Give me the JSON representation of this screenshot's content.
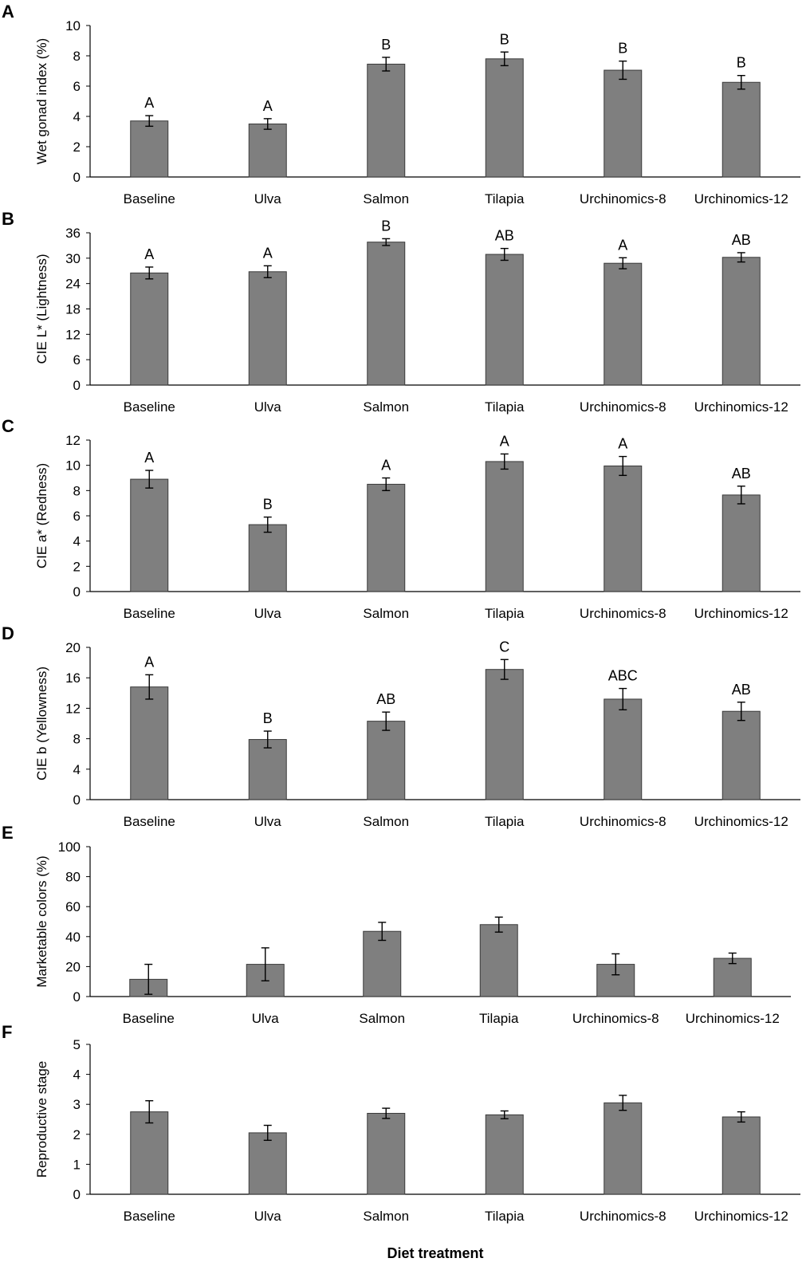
{
  "figure": {
    "x_title": "Diet treatment",
    "bar_color": "#7f7f7f",
    "axis_color": "#000000"
  },
  "chart_data": [
    {
      "panel": "A",
      "type": "bar",
      "ylabel": "Wet gonad index (%)",
      "ylim": [
        0,
        10
      ],
      "yticks": [
        "0",
        "2",
        "4",
        "6",
        "8",
        "10"
      ],
      "categories": [
        "Baseline",
        "Ulva",
        "Salmon",
        "Tilapia",
        "Urchinomics-8",
        "Urchinomics-12"
      ],
      "values": [
        3.7,
        3.5,
        7.45,
        7.8,
        7.05,
        6.25
      ],
      "errors": [
        0.35,
        0.35,
        0.45,
        0.45,
        0.6,
        0.45
      ],
      "letters": [
        "A",
        "A",
        "B",
        "B",
        "B",
        "B"
      ]
    },
    {
      "panel": "B",
      "type": "bar",
      "ylabel": "CIE L* (Lightness)",
      "ylim": [
        0,
        36
      ],
      "yticks": [
        "0",
        "6",
        "12",
        "18",
        "24",
        "30",
        "36"
      ],
      "categories": [
        "Baseline",
        "Ulva",
        "Salmon",
        "Tilapia",
        "Urchinomics-8",
        "Urchinomics-12"
      ],
      "values": [
        26.5,
        26.8,
        33.8,
        30.9,
        28.8,
        30.2
      ],
      "errors": [
        1.4,
        1.4,
        0.8,
        1.4,
        1.3,
        1.1
      ],
      "letters": [
        "A",
        "A",
        "B",
        "AB",
        "A",
        "AB"
      ]
    },
    {
      "panel": "C",
      "type": "bar",
      "ylabel": "CIE a* (Redness)",
      "ylim": [
        0,
        12
      ],
      "yticks": [
        "0",
        "2",
        "4",
        "6",
        "8",
        "10",
        "12"
      ],
      "categories": [
        "Baseline",
        "Ulva",
        "Salmon",
        "Tilapia",
        "Urchinomics-8",
        "Urchinomics-12"
      ],
      "values": [
        8.9,
        5.3,
        8.5,
        10.3,
        9.95,
        7.65
      ],
      "errors": [
        0.7,
        0.6,
        0.5,
        0.6,
        0.75,
        0.7
      ],
      "letters": [
        "A",
        "B",
        "A",
        "A",
        "A",
        "AB"
      ]
    },
    {
      "panel": "D",
      "type": "bar",
      "ylabel": "CIE b (Yellowness)",
      "ylim": [
        0,
        20
      ],
      "yticks": [
        "0",
        "4",
        "8",
        "12",
        "16",
        "20"
      ],
      "categories": [
        "Baseline",
        "Ulva",
        "Salmon",
        "Tilapia",
        "Urchinomics-8",
        "Urchinomics-12"
      ],
      "values": [
        14.8,
        7.9,
        10.3,
        17.1,
        13.2,
        11.6
      ],
      "errors": [
        1.6,
        1.1,
        1.2,
        1.3,
        1.4,
        1.2
      ],
      "letters": [
        "A",
        "B",
        "AB",
        "C",
        "ABC",
        "AB"
      ]
    },
    {
      "panel": "E",
      "type": "bar",
      "ylabel": "Marketable colors (%)",
      "ylim": [
        0,
        100
      ],
      "yticks": [
        "0",
        "20",
        "40",
        "60",
        "80",
        "100"
      ],
      "categories": [
        "Baseline",
        "Ulva",
        "Salmon",
        "Tilapia",
        "Urchinomics-8",
        "Urchinomics-12"
      ],
      "values": [
        11.5,
        21.5,
        43.5,
        48,
        21.5,
        25.5
      ],
      "errors": [
        10,
        11,
        6,
        5,
        7,
        3.5
      ],
      "letters": [
        "",
        "",
        "",
        "",
        "",
        ""
      ]
    },
    {
      "panel": "F",
      "type": "bar",
      "ylabel": "Reproductive stage",
      "ylim": [
        0,
        5
      ],
      "yticks": [
        "0",
        "1",
        "2",
        "3",
        "4",
        "5"
      ],
      "categories": [
        "Baseline",
        "Ulva",
        "Salmon",
        "Tilapia",
        "Urchinomics-8",
        "Urchinomics-12"
      ],
      "values": [
        2.75,
        2.05,
        2.7,
        2.65,
        3.05,
        2.58
      ],
      "errors": [
        0.37,
        0.25,
        0.17,
        0.13,
        0.25,
        0.17
      ],
      "letters": [
        "",
        "",
        "",
        "",
        "",
        ""
      ]
    }
  ]
}
